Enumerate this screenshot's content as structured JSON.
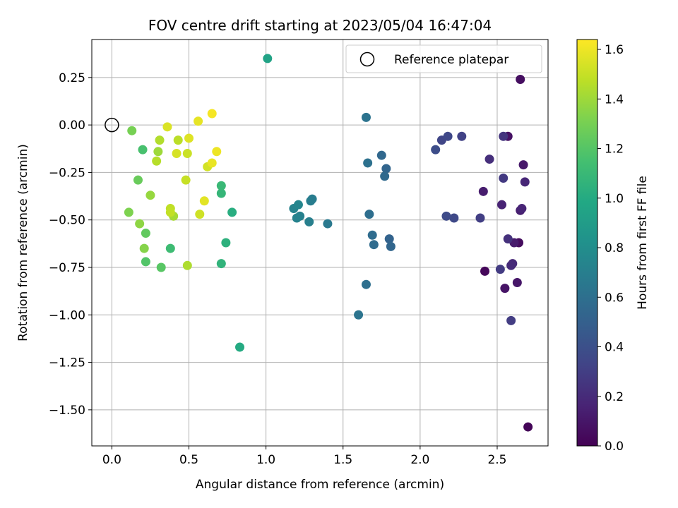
{
  "chart_data": {
    "type": "scatter",
    "title": "FOV centre drift starting at 2023/05/04 16:47:04",
    "xlabel": "Angular distance from reference (arcmin)",
    "ylabel": "Rotation from reference (arcmin)",
    "xlim": [
      -0.13,
      2.83
    ],
    "ylim": [
      -1.69,
      0.45
    ],
    "xticks": [
      0.0,
      0.5,
      1.0,
      1.5,
      2.0,
      2.5
    ],
    "xtick_labels": [
      "0.0",
      "0.5",
      "1.0",
      "1.5",
      "2.0",
      "2.5"
    ],
    "yticks": [
      0.25,
      0.0,
      -0.25,
      -0.5,
      -0.75,
      -1.0,
      -1.25,
      -1.5
    ],
    "ytick_labels": [
      "0.25",
      "0.00",
      "−0.25",
      "−0.50",
      "−0.75",
      "−1.00",
      "−1.25",
      "−1.50"
    ],
    "grid": true,
    "legend": {
      "position": "upper-right",
      "entries": [
        {
          "label": "Reference platepar",
          "marker": "open-circle"
        }
      ]
    },
    "reference_point": {
      "x": 0.0,
      "y": 0.0
    },
    "colorbar": {
      "label": "Hours from first FF file",
      "colormap": "viridis",
      "range": [
        0.0,
        1.64
      ],
      "ticks": [
        0.0,
        0.2,
        0.4,
        0.6,
        0.8,
        1.0,
        1.2,
        1.4,
        1.6
      ],
      "tick_labels": [
        "0.0",
        "0.2",
        "0.4",
        "0.6",
        "0.8",
        "1.0",
        "1.2",
        "1.4",
        "1.6"
      ]
    },
    "points": [
      {
        "x": 2.7,
        "y": -1.59,
        "c": 0.02
      },
      {
        "x": 2.42,
        "y": -0.77,
        "c": 0.03
      },
      {
        "x": 2.64,
        "y": -0.62,
        "c": 0.05
      },
      {
        "x": 2.65,
        "y": 0.24,
        "c": 0.06
      },
      {
        "x": 2.57,
        "y": -0.06,
        "c": 0.08
      },
      {
        "x": 2.55,
        "y": -0.86,
        "c": 0.09
      },
      {
        "x": 2.63,
        "y": -0.83,
        "c": 0.1
      },
      {
        "x": 2.67,
        "y": -0.21,
        "c": 0.11
      },
      {
        "x": 2.61,
        "y": -0.62,
        "c": 0.12
      },
      {
        "x": 2.41,
        "y": -0.35,
        "c": 0.13
      },
      {
        "x": 2.65,
        "y": -0.45,
        "c": 0.14
      },
      {
        "x": 2.53,
        "y": -0.42,
        "c": 0.16
      },
      {
        "x": 2.66,
        "y": -0.44,
        "c": 0.17
      },
      {
        "x": 2.68,
        "y": -0.3,
        "c": 0.18
      },
      {
        "x": 2.6,
        "y": -0.73,
        "c": 0.19
      },
      {
        "x": 2.59,
        "y": -0.74,
        "c": 0.2
      },
      {
        "x": 2.45,
        "y": -0.18,
        "c": 0.22
      },
      {
        "x": 2.57,
        "y": -0.6,
        "c": 0.23
      },
      {
        "x": 2.54,
        "y": -0.06,
        "c": 0.25
      },
      {
        "x": 2.54,
        "y": -0.28,
        "c": 0.27
      },
      {
        "x": 2.52,
        "y": -0.76,
        "c": 0.28
      },
      {
        "x": 2.59,
        "y": -1.03,
        "c": 0.29
      },
      {
        "x": 2.39,
        "y": -0.49,
        "c": 0.3
      },
      {
        "x": 2.27,
        "y": -0.06,
        "c": 0.32
      },
      {
        "x": 2.14,
        "y": -0.08,
        "c": 0.34
      },
      {
        "x": 2.18,
        "y": -0.06,
        "c": 0.35
      },
      {
        "x": 2.22,
        "y": -0.49,
        "c": 0.36
      },
      {
        "x": 2.17,
        "y": -0.48,
        "c": 0.37
      },
      {
        "x": 2.1,
        "y": -0.13,
        "c": 0.38
      },
      {
        "x": 1.8,
        "y": -0.6,
        "c": 0.52
      },
      {
        "x": 1.78,
        "y": -0.23,
        "c": 0.53
      },
      {
        "x": 1.81,
        "y": -0.64,
        "c": 0.54
      },
      {
        "x": 1.75,
        "y": -0.16,
        "c": 0.55
      },
      {
        "x": 1.77,
        "y": -0.27,
        "c": 0.56
      },
      {
        "x": 1.7,
        "y": -0.63,
        "c": 0.57
      },
      {
        "x": 1.69,
        "y": -0.58,
        "c": 0.58
      },
      {
        "x": 1.67,
        "y": -0.47,
        "c": 0.59
      },
      {
        "x": 1.65,
        "y": -0.84,
        "c": 0.6
      },
      {
        "x": 1.66,
        "y": -0.2,
        "c": 0.61
      },
      {
        "x": 1.65,
        "y": 0.04,
        "c": 0.62
      },
      {
        "x": 1.6,
        "y": -1.0,
        "c": 0.63
      },
      {
        "x": 1.4,
        "y": -0.52,
        "c": 0.66
      },
      {
        "x": 1.3,
        "y": -0.39,
        "c": 0.68
      },
      {
        "x": 1.29,
        "y": -0.4,
        "c": 0.69
      },
      {
        "x": 1.28,
        "y": -0.51,
        "c": 0.7
      },
      {
        "x": 1.22,
        "y": -0.48,
        "c": 0.71
      },
      {
        "x": 1.2,
        "y": -0.49,
        "c": 0.72
      },
      {
        "x": 1.18,
        "y": -0.44,
        "c": 0.73
      },
      {
        "x": 1.21,
        "y": -0.42,
        "c": 0.74
      },
      {
        "x": 1.01,
        "y": 0.35,
        "c": 0.95
      },
      {
        "x": 0.83,
        "y": -1.17,
        "c": 1.0
      },
      {
        "x": 0.78,
        "y": -0.46,
        "c": 1.02
      },
      {
        "x": 0.74,
        "y": -0.62,
        "c": 1.04
      },
      {
        "x": 0.71,
        "y": -0.73,
        "c": 1.06
      },
      {
        "x": 0.71,
        "y": -0.36,
        "c": 1.08
      },
      {
        "x": 0.71,
        "y": -0.32,
        "c": 1.1
      },
      {
        "x": 0.38,
        "y": -0.65,
        "c": 1.12
      },
      {
        "x": 0.2,
        "y": -0.13,
        "c": 1.16
      },
      {
        "x": 0.22,
        "y": -0.72,
        "c": 1.19
      },
      {
        "x": 0.32,
        "y": -0.75,
        "c": 1.21
      },
      {
        "x": 0.22,
        "y": -0.57,
        "c": 1.24
      },
      {
        "x": 0.17,
        "y": -0.29,
        "c": 1.26
      },
      {
        "x": 0.13,
        "y": -0.03,
        "c": 1.3
      },
      {
        "x": 0.11,
        "y": -0.46,
        "c": 1.32
      },
      {
        "x": 0.21,
        "y": -0.65,
        "c": 1.34
      },
      {
        "x": 0.18,
        "y": -0.52,
        "c": 1.36
      },
      {
        "x": 0.25,
        "y": -0.37,
        "c": 1.38
      },
      {
        "x": 0.3,
        "y": -0.14,
        "c": 1.4
      },
      {
        "x": 0.4,
        "y": -0.48,
        "c": 1.42
      },
      {
        "x": 0.49,
        "y": -0.74,
        "c": 1.44
      },
      {
        "x": 0.31,
        "y": -0.08,
        "c": 1.45
      },
      {
        "x": 0.29,
        "y": -0.19,
        "c": 1.46
      },
      {
        "x": 0.43,
        "y": -0.08,
        "c": 1.47
      },
      {
        "x": 0.38,
        "y": -0.44,
        "c": 1.48
      },
      {
        "x": 0.38,
        "y": -0.46,
        "c": 1.49
      },
      {
        "x": 0.48,
        "y": -0.29,
        "c": 1.5
      },
      {
        "x": 0.49,
        "y": -0.15,
        "c": 1.51
      },
      {
        "x": 0.57,
        "y": -0.47,
        "c": 1.52
      },
      {
        "x": 0.62,
        "y": -0.22,
        "c": 1.53
      },
      {
        "x": 0.42,
        "y": -0.15,
        "c": 1.54
      },
      {
        "x": 0.36,
        "y": -0.01,
        "c": 1.55
      },
      {
        "x": 0.5,
        "y": -0.07,
        "c": 1.56
      },
      {
        "x": 0.6,
        "y": -0.4,
        "c": 1.57
      },
      {
        "x": 0.56,
        "y": 0.02,
        "c": 1.58
      },
      {
        "x": 0.65,
        "y": -0.2,
        "c": 1.59
      },
      {
        "x": 0.68,
        "y": -0.14,
        "c": 1.6
      },
      {
        "x": 0.65,
        "y": 0.06,
        "c": 1.62
      }
    ]
  }
}
